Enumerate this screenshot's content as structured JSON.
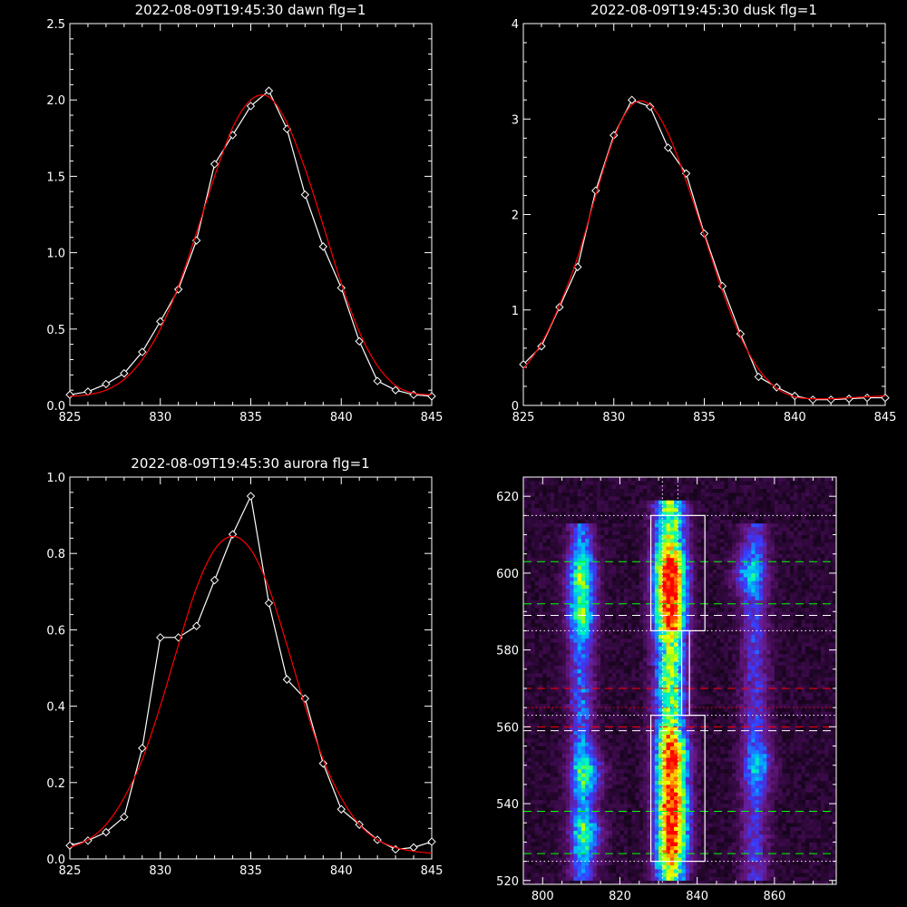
{
  "chart_data": [
    {
      "type": "line",
      "title": "2022-08-09T19:45:30 dawn flg=1",
      "xlim": [
        825,
        845
      ],
      "ylim": [
        0,
        2.5
      ],
      "xticks": [
        "825",
        "830",
        "835",
        "840",
        "845"
      ],
      "yticks": [
        "0.0",
        "0.5",
        "1.0",
        "1.5",
        "2.0",
        "2.5"
      ],
      "series": [
        {
          "color": "#ffffff",
          "marker": "diamond",
          "x": [
            825,
            826,
            827,
            828,
            829,
            830,
            831,
            832,
            833,
            834,
            835,
            836,
            837,
            838,
            839,
            840,
            841,
            842,
            843,
            844,
            845
          ],
          "y": [
            0.07,
            0.09,
            0.14,
            0.21,
            0.35,
            0.55,
            0.76,
            1.08,
            1.58,
            1.77,
            1.96,
            2.06,
            1.81,
            1.38,
            1.04,
            0.77,
            0.42,
            0.16,
            0.1,
            0.07,
            0.06
          ]
        },
        {
          "color": "#ff0000",
          "marker": "none",
          "fit": "gaussian",
          "x": [
            825,
            826,
            827,
            828,
            829,
            830,
            831,
            832,
            833,
            834,
            835,
            836,
            837,
            838,
            839,
            840,
            841,
            842,
            843,
            844,
            845
          ],
          "y": [
            0.06,
            0.07,
            0.1,
            0.17,
            0.3,
            0.5,
            0.78,
            1.13,
            1.5,
            1.82,
            2.0,
            2.02,
            1.85,
            1.55,
            1.18,
            0.8,
            0.48,
            0.26,
            0.13,
            0.08,
            0.07
          ]
        }
      ]
    },
    {
      "type": "line",
      "title": "2022-08-09T19:45:30 dusk flg=1",
      "xlim": [
        825,
        845
      ],
      "ylim": [
        0,
        4
      ],
      "xticks": [
        "825",
        "830",
        "835",
        "840",
        "845"
      ],
      "yticks": [
        "0",
        "1",
        "2",
        "3",
        "4"
      ],
      "series": [
        {
          "color": "#ffffff",
          "marker": "diamond",
          "x": [
            825,
            826,
            827,
            828,
            829,
            830,
            831,
            832,
            833,
            834,
            835,
            836,
            837,
            838,
            839,
            840,
            841,
            842,
            843,
            844,
            845
          ],
          "y": [
            0.43,
            0.62,
            1.03,
            1.45,
            2.25,
            2.83,
            3.2,
            3.13,
            2.7,
            2.43,
            1.8,
            1.25,
            0.75,
            0.3,
            0.19,
            0.1,
            0.06,
            0.06,
            0.07,
            0.08,
            0.08
          ]
        },
        {
          "color": "#ff0000",
          "marker": "none",
          "fit": "gaussian",
          "x": [
            825,
            826,
            827,
            828,
            829,
            830,
            831,
            832,
            833,
            834,
            835,
            836,
            837,
            838,
            839,
            840,
            841,
            842,
            843,
            844,
            845
          ],
          "y": [
            0.38,
            0.65,
            1.05,
            1.55,
            2.2,
            2.8,
            3.15,
            3.15,
            2.85,
            2.35,
            1.78,
            1.2,
            0.72,
            0.38,
            0.18,
            0.09,
            0.07,
            0.07,
            0.08,
            0.09,
            0.1
          ]
        }
      ]
    },
    {
      "type": "line",
      "title": "2022-08-09T19:45:30 aurora flg=1",
      "xlim": [
        825,
        845
      ],
      "ylim": [
        0,
        1.0
      ],
      "xticks": [
        "825",
        "830",
        "835",
        "840",
        "845"
      ],
      "yticks": [
        "0.0",
        "0.2",
        "0.4",
        "0.6",
        "0.8",
        "1.0"
      ],
      "series": [
        {
          "color": "#ffffff",
          "marker": "diamond",
          "x": [
            825,
            826,
            827,
            828,
            829,
            830,
            831,
            832,
            833,
            834,
            835,
            836,
            837,
            838,
            839,
            840,
            841,
            842,
            843,
            844,
            845
          ],
          "y": [
            0.035,
            0.048,
            0.07,
            0.11,
            0.29,
            0.58,
            0.58,
            0.61,
            0.73,
            0.85,
            0.95,
            0.67,
            0.47,
            0.42,
            0.25,
            0.13,
            0.09,
            0.05,
            0.025,
            0.03,
            0.045
          ]
        },
        {
          "color": "#ff0000",
          "marker": "none",
          "fit": "gaussian",
          "x": [
            825,
            826,
            827,
            828,
            829,
            830,
            831,
            832,
            833,
            834,
            835,
            836,
            837,
            838,
            839,
            840,
            841,
            842,
            843,
            844,
            845
          ],
          "y": [
            0.03,
            0.05,
            0.09,
            0.16,
            0.26,
            0.4,
            0.56,
            0.71,
            0.81,
            0.845,
            0.81,
            0.71,
            0.56,
            0.4,
            0.26,
            0.16,
            0.09,
            0.05,
            0.03,
            0.02,
            0.015
          ]
        }
      ]
    },
    {
      "type": "heatmap",
      "title": "",
      "xlim": [
        795,
        876
      ],
      "ylim": [
        519,
        625
      ],
      "xticks": [
        "800",
        "820",
        "840",
        "860"
      ],
      "yticks": [
        "520",
        "540",
        "560",
        "580",
        "600",
        "620"
      ],
      "colormap": [
        "#000000",
        "#3a0a48",
        "#6a1a8a",
        "#3a3aff",
        "#00b4ff",
        "#00ffb4",
        "#b4ff00",
        "#ffff00",
        "#ff8000",
        "#ff0000"
      ],
      "columns": [
        {
          "x_center": 810,
          "width": 8,
          "y_from": 520,
          "y_to": 612,
          "intensity": 0.45
        },
        {
          "x_center": 833,
          "width": 10,
          "y_from": 520,
          "y_to": 618,
          "intensity": 0.9
        },
        {
          "x_center": 855,
          "width": 9,
          "y_from": 520,
          "y_to": 612,
          "intensity": 0.35
        }
      ],
      "hotspots": [
        {
          "x": 810,
          "y": 600,
          "intensity": 0.55
        },
        {
          "x": 810,
          "y": 589,
          "intensity": 0.5
        },
        {
          "x": 812,
          "y": 548,
          "intensity": 0.55
        },
        {
          "x": 812,
          "y": 532,
          "intensity": 0.55
        },
        {
          "x": 833,
          "y": 600,
          "intensity": 1.0
        },
        {
          "x": 833,
          "y": 590,
          "intensity": 0.8
        },
        {
          "x": 834,
          "y": 552,
          "intensity": 0.75
        },
        {
          "x": 834,
          "y": 540,
          "intensity": 0.75
        },
        {
          "x": 834,
          "y": 530,
          "intensity": 0.7
        },
        {
          "x": 853,
          "y": 600,
          "intensity": 0.45
        },
        {
          "x": 856,
          "y": 550,
          "intensity": 0.35
        }
      ],
      "boxes": [
        {
          "x0": 828,
          "x1": 842,
          "y0": 585,
          "y1": 615,
          "color": "#ffffff"
        },
        {
          "x0": 828,
          "x1": 842,
          "y0": 525,
          "y1": 563,
          "color": "#ffffff"
        },
        {
          "x0": 836,
          "x1": 838,
          "y0": 563,
          "y1": 585,
          "color": "#ffffff"
        }
      ],
      "hlines": [
        {
          "y": 615,
          "color": "#ffffff",
          "style": "dotted"
        },
        {
          "y": 603,
          "color": "#00ff00",
          "style": "dashed"
        },
        {
          "y": 592,
          "color": "#00ff00",
          "style": "dashed"
        },
        {
          "y": 589,
          "color": "#ffffff",
          "style": "dashed"
        },
        {
          "y": 585,
          "color": "#ffffff",
          "style": "dotted"
        },
        {
          "y": 570,
          "color": "#ff0000",
          "style": "dashed"
        },
        {
          "y": 565,
          "color": "#ff0000",
          "style": "dotted"
        },
        {
          "y": 563,
          "color": "#ffffff",
          "style": "dotted"
        },
        {
          "y": 560,
          "color": "#ff0000",
          "style": "dashed"
        },
        {
          "y": 559,
          "color": "#ffffff",
          "style": "dashed"
        },
        {
          "y": 538,
          "color": "#00ff00",
          "style": "dashed"
        },
        {
          "y": 527,
          "color": "#00ff00",
          "style": "dashed"
        },
        {
          "y": 525,
          "color": "#ffffff",
          "style": "dotted"
        }
      ],
      "vlines": [
        {
          "x": 831,
          "color": "#ffffff",
          "style": "dotted"
        },
        {
          "x": 835,
          "color": "#ffffff",
          "style": "dotted"
        }
      ]
    }
  ]
}
